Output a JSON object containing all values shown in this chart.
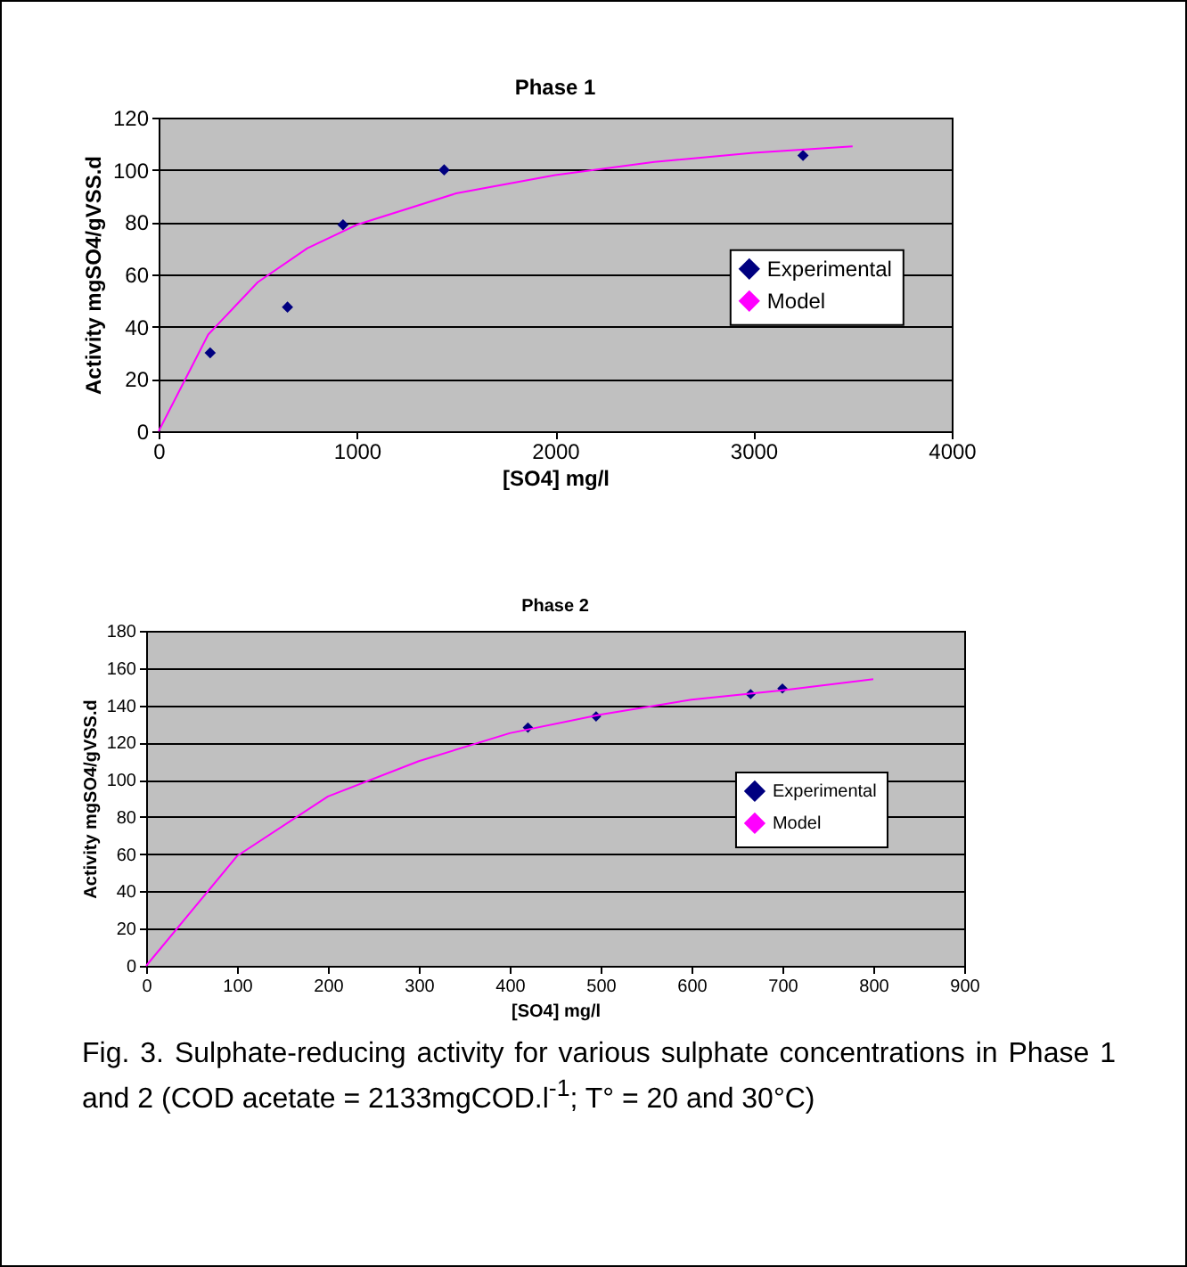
{
  "chart_data": [
    {
      "type": "scatter",
      "title": "Phase 1",
      "xlabel": "[SO4] mg/l",
      "ylabel": "Activity mgSO4/gVSS.d",
      "xlim": [
        0,
        4000
      ],
      "xticks": [
        0,
        1000,
        2000,
        3000,
        4000
      ],
      "ylim": [
        0,
        120
      ],
      "yticks": [
        0,
        20,
        40,
        60,
        80,
        100,
        120
      ],
      "grid": "y",
      "legend": "right",
      "series": [
        {
          "name": "Experimental",
          "type": "scatter",
          "marker": "diamond",
          "color": "#000080",
          "x": [
            260,
            650,
            930,
            1440,
            3250
          ],
          "values": [
            30,
            47.5,
            79,
            100,
            105.5
          ]
        },
        {
          "name": "Model",
          "type": "line",
          "color": "#ff00ff",
          "x": [
            0,
            250,
            500,
            750,
            1000,
            1500,
            2000,
            2500,
            3000,
            3500
          ],
          "values": [
            0,
            37,
            57,
            70,
            79,
            91,
            98,
            103,
            106.5,
            109
          ]
        }
      ]
    },
    {
      "type": "scatter",
      "title": "Phase 2",
      "xlabel": "[SO4] mg/l",
      "ylabel": "Activity mgSO4/gVSS.d",
      "xlim": [
        0,
        900
      ],
      "xticks": [
        0,
        100,
        200,
        300,
        400,
        500,
        600,
        700,
        800,
        900
      ],
      "ylim": [
        0,
        180
      ],
      "yticks": [
        0,
        20,
        40,
        60,
        80,
        100,
        120,
        140,
        160,
        180
      ],
      "grid": "y",
      "legend": "right",
      "series": [
        {
          "name": "Experimental",
          "type": "scatter",
          "marker": "diamond",
          "color": "#000080",
          "x": [
            420,
            495,
            665,
            700
          ],
          "values": [
            128,
            134,
            146,
            149
          ]
        },
        {
          "name": "Model",
          "type": "line",
          "color": "#ff00ff",
          "x": [
            0,
            100,
            200,
            300,
            400,
            500,
            600,
            700,
            800
          ],
          "values": [
            0,
            59,
            91,
            110,
            125,
            135,
            143,
            148,
            154
          ]
        }
      ],
      "annotations": [
        "Fig. 3. Sulphate-reducing activity for various sulphate concentrations in Phase 1 and 2 (COD acetate = 2133mgCOD.l$^{-1}$; T° = 20 and 30°C)"
      ]
    }
  ]
}
